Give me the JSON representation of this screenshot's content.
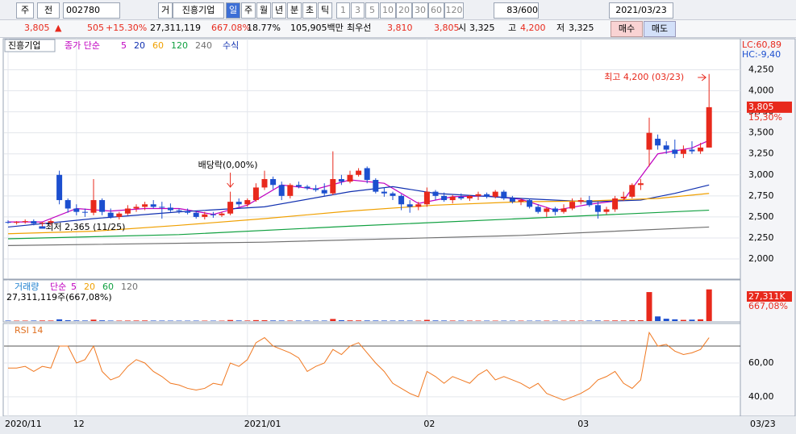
{
  "toolbar": {
    "market": "주",
    "prev": "전",
    "code": "002780",
    "type": "거",
    "name": "진흥기업",
    "periods": [
      "일",
      "주",
      "월",
      "년",
      "분",
      "초",
      "틱"
    ],
    "intervals": [
      "1",
      "3",
      "5",
      "10",
      "20",
      "30",
      "60",
      "120"
    ],
    "count": "83/600",
    "date": "2021/03/23"
  },
  "quote": {
    "price": "3,805",
    "arrow": "▲",
    "change": "505",
    "rate": "+15.30%",
    "volume": "27,311,119",
    "volume_rate": "667.08%",
    "turnover": "18.77%",
    "amount": "105,905백만",
    "best_label": "최우선",
    "ask": "3,810",
    "bid": "3,805",
    "open_label": "시",
    "open": "3,325",
    "high_label": "고",
    "high": "4,200",
    "low_label": "저",
    "low": "3,325",
    "buy": "매수",
    "sell": "매도"
  },
  "chart_data": [
    {
      "type": "candlestick",
      "legend": {
        "name": "진흥기업",
        "ma_label": "종가 단순",
        "formula": "수식"
      },
      "categories": [
        "2020/11",
        null,
        null,
        null,
        null,
        null,
        null,
        null,
        "12",
        null,
        null,
        null,
        null,
        null,
        null,
        null,
        null,
        null,
        null,
        null,
        null,
        null,
        null,
        null,
        null,
        null,
        null,
        null,
        "2021/01",
        null,
        null,
        null,
        null,
        null,
        null,
        null,
        null,
        null,
        null,
        null,
        null,
        null,
        null,
        null,
        null,
        null,
        null,
        null,
        null,
        "02",
        null,
        null,
        null,
        null,
        null,
        null,
        null,
        null,
        null,
        null,
        null,
        null,
        null,
        null,
        null,
        null,
        null,
        "03",
        null,
        null,
        null,
        null,
        null,
        null,
        null,
        null,
        null,
        null,
        null,
        null,
        null,
        null,
        null
      ],
      "last_date": "03/23",
      "ohlc": [
        [
          2440,
          2460,
          2420,
          2430
        ],
        [
          2430,
          2450,
          2410,
          2440
        ],
        [
          2440,
          2470,
          2420,
          2450
        ],
        [
          2450,
          2470,
          2400,
          2420
        ],
        [
          2420,
          2440,
          2365,
          2430
        ],
        [
          2430,
          2470,
          2400,
          2450
        ],
        [
          3000,
          3050,
          2650,
          2700
        ],
        [
          2700,
          2720,
          2550,
          2600
        ],
        [
          2600,
          2650,
          2520,
          2560
        ],
        [
          2560,
          2600,
          2500,
          2550
        ],
        [
          2550,
          2950,
          2520,
          2700
        ],
        [
          2700,
          2720,
          2520,
          2560
        ],
        [
          2550,
          2600,
          2480,
          2500
        ],
        [
          2500,
          2560,
          2470,
          2540
        ],
        [
          2540,
          2640,
          2520,
          2600
        ],
        [
          2600,
          2650,
          2560,
          2620
        ],
        [
          2620,
          2680,
          2580,
          2650
        ],
        [
          2650,
          2700,
          2600,
          2620
        ],
        [
          2620,
          2680,
          2480,
          2610
        ],
        [
          2610,
          2660,
          2560,
          2580
        ],
        [
          2580,
          2600,
          2540,
          2570
        ],
        [
          2570,
          2600,
          2530,
          2550
        ],
        [
          2550,
          2570,
          2480,
          2500
        ],
        [
          2500,
          2560,
          2470,
          2530
        ],
        [
          2530,
          2560,
          2490,
          2520
        ],
        [
          2520,
          2560,
          2500,
          2540
        ],
        [
          2540,
          2800,
          2520,
          2680
        ],
        [
          2680,
          2720,
          2620,
          2650
        ],
        [
          2650,
          2720,
          2620,
          2700
        ],
        [
          2700,
          2900,
          2680,
          2850
        ],
        [
          2850,
          3050,
          2820,
          2950
        ],
        [
          2950,
          2980,
          2830,
          2880
        ],
        [
          2880,
          2920,
          2700,
          2750
        ],
        [
          2750,
          2900,
          2720,
          2880
        ],
        [
          2880,
          2920,
          2840,
          2860
        ],
        [
          2860,
          2880,
          2820,
          2840
        ],
        [
          2840,
          2880,
          2800,
          2820
        ],
        [
          2820,
          2900,
          2750,
          2780
        ],
        [
          2780,
          3280,
          2760,
          2950
        ],
        [
          2950,
          3000,
          2880,
          2920
        ],
        [
          2920,
          3050,
          2900,
          3000
        ],
        [
          3000,
          3080,
          2980,
          3050
        ],
        [
          3080,
          3100,
          2900,
          2940
        ],
        [
          2940,
          2960,
          2780,
          2800
        ],
        [
          2800,
          2850,
          2740,
          2780
        ],
        [
          2780,
          2800,
          2700,
          2750
        ],
        [
          2750,
          2770,
          2580,
          2650
        ],
        [
          2650,
          2700,
          2550,
          2620
        ],
        [
          2620,
          2680,
          2580,
          2650
        ],
        [
          2650,
          2850,
          2620,
          2800
        ],
        [
          2800,
          2820,
          2700,
          2750
        ],
        [
          2750,
          2790,
          2680,
          2700
        ],
        [
          2700,
          2760,
          2660,
          2740
        ],
        [
          2740,
          2780,
          2700,
          2720
        ],
        [
          2720,
          2760,
          2690,
          2750
        ],
        [
          2750,
          2800,
          2700,
          2770
        ],
        [
          2770,
          2790,
          2720,
          2740
        ],
        [
          2740,
          2820,
          2720,
          2800
        ],
        [
          2800,
          2820,
          2700,
          2720
        ],
        [
          2720,
          2750,
          2660,
          2680
        ],
        [
          2680,
          2720,
          2640,
          2700
        ],
        [
          2700,
          2720,
          2600,
          2620
        ],
        [
          2620,
          2650,
          2540,
          2560
        ],
        [
          2560,
          2620,
          2500,
          2600
        ],
        [
          2600,
          2620,
          2520,
          2560
        ],
        [
          2560,
          2650,
          2540,
          2600
        ],
        [
          2600,
          2720,
          2580,
          2680
        ],
        [
          2680,
          2730,
          2650,
          2700
        ],
        [
          2700,
          2750,
          2620,
          2640
        ],
        [
          2640,
          2680,
          2480,
          2560
        ],
        [
          2560,
          2620,
          2530,
          2590
        ],
        [
          2590,
          2750,
          2560,
          2720
        ],
        [
          2720,
          2800,
          2690,
          2740
        ],
        [
          2740,
          2900,
          2720,
          2880
        ],
        [
          2880,
          2950,
          2820,
          2900
        ],
        [
          3300,
          3680,
          3100,
          3500
        ],
        [
          3430,
          3480,
          3300,
          3350
        ],
        [
          3350,
          3400,
          3250,
          3300
        ],
        [
          3300,
          3420,
          3200,
          3250
        ],
        [
          3250,
          3350,
          3200,
          3300
        ],
        [
          3300,
          3400,
          3250,
          3280
        ],
        [
          3280,
          3380,
          3250,
          3325
        ],
        [
          3325,
          4200,
          3325,
          3805
        ]
      ],
      "colors": {
        "up": "#e8291c",
        "down": "#1c4fcf"
      },
      "series": [
        {
          "name": "5",
          "color": "#c000c0",
          "x": [
            0,
            4,
            8,
            12,
            16,
            20,
            24,
            28,
            32,
            36,
            40,
            44,
            48,
            52,
            56,
            60,
            64,
            68,
            72,
            76,
            80,
            82
          ],
          "values": [
            2440,
            2440,
            2600,
            2570,
            2600,
            2600,
            2530,
            2640,
            2880,
            2830,
            2940,
            2900,
            2660,
            2740,
            2750,
            2710,
            2580,
            2650,
            2700,
            3250,
            3320,
            3410
          ]
        },
        {
          "name": "20",
          "color": "#1030b0",
          "x": [
            0,
            10,
            20,
            30,
            40,
            45,
            50,
            60,
            68,
            74,
            78,
            82
          ],
          "values": [
            2380,
            2480,
            2560,
            2620,
            2800,
            2860,
            2780,
            2720,
            2680,
            2700,
            2780,
            2880
          ]
        },
        {
          "name": "60",
          "color": "#f0a000",
          "x": [
            0,
            10,
            20,
            30,
            40,
            50,
            60,
            68,
            76,
            82
          ],
          "values": [
            2300,
            2330,
            2400,
            2480,
            2570,
            2640,
            2680,
            2690,
            2720,
            2780
          ]
        },
        {
          "name": "120",
          "color": "#10a040",
          "x": [
            0,
            20,
            40,
            60,
            82
          ],
          "values": [
            2240,
            2290,
            2390,
            2480,
            2580
          ]
        },
        {
          "name": "240",
          "color": "#707070",
          "x": [
            0,
            30,
            60,
            82
          ],
          "values": [
            2160,
            2200,
            2280,
            2380
          ]
        }
      ],
      "ylim": [
        1770,
        4600
      ],
      "yticks": [
        {
          "value": 2000,
          "label": "2,000"
        },
        {
          "value": 2250,
          "label": "2,250"
        },
        {
          "value": 2500,
          "label": "2,500"
        },
        {
          "value": 2750,
          "label": "2,750"
        },
        {
          "value": 3000,
          "label": "3,000"
        },
        {
          "value": 3250,
          "label": "3,250"
        },
        {
          "value": 3500,
          "label": "3,500"
        },
        {
          "value": 3750,
          "label": "3,750"
        },
        {
          "value": 4000,
          "label": "4,000"
        },
        {
          "value": 4250,
          "label": "4,250"
        }
      ],
      "annotations": {
        "high": "최고 4,200 (03/23)",
        "dividend": "배당락(0,00%)",
        "low": "최저 2,365 (11/25)"
      },
      "last_label": "3,805",
      "rate_label": "15,30%",
      "lc": "LC:60,89",
      "hc": "HC:-9,40"
    },
    {
      "type": "bar",
      "legend": {
        "name": "거래량",
        "ma_label": "단순",
        "names": [
          {
            "name": "5",
            "color": "#c000c0"
          },
          {
            "name": "20",
            "color": "#f0a000"
          },
          {
            "name": "60",
            "color": "#10a040"
          },
          {
            "name": "120",
            "color": "#707070"
          }
        ]
      },
      "values": [
        400000,
        350000,
        380000,
        420000,
        500000,
        450000,
        1500000,
        700000,
        500000,
        450000,
        1200000,
        600000,
        400000,
        380000,
        420000,
        450000,
        500000,
        400000,
        380000,
        350000,
        340000,
        330000,
        360000,
        350000,
        340000,
        330000,
        900000,
        500000,
        450000,
        800000,
        700000,
        500000,
        450000,
        420000,
        400000,
        380000,
        360000,
        400000,
        1800000,
        700000,
        600000,
        550000,
        500000,
        450000,
        420000,
        400000,
        450000,
        400000,
        380000,
        1000000,
        500000,
        450000,
        420000,
        400000,
        380000,
        360000,
        350000,
        340000,
        360000,
        350000,
        340000,
        330000,
        350000,
        360000,
        340000,
        330000,
        400000,
        380000,
        360000,
        450000,
        420000,
        500000,
        480000,
        600000,
        700000,
        25000000,
        4000000,
        2000000,
        1500000,
        1000000,
        1200000,
        1500000,
        27311119
      ],
      "ylim": [
        0,
        32000000
      ],
      "summary": "27,311,119주(667,08%)",
      "last_label": "27,311K",
      "rate_label": "667,08%"
    },
    {
      "type": "line",
      "title": "RSI 14",
      "color": "#f07820",
      "values": [
        57,
        57,
        58,
        55,
        58,
        57,
        70,
        70,
        60,
        62,
        70,
        55,
        50,
        52,
        58,
        62,
        60,
        55,
        52,
        48,
        47,
        45,
        44,
        45,
        48,
        47,
        60,
        58,
        62,
        72,
        75,
        70,
        68,
        66,
        63,
        55,
        58,
        60,
        68,
        65,
        70,
        72,
        66,
        60,
        55,
        48,
        45,
        42,
        40,
        55,
        52,
        48,
        52,
        50,
        48,
        53,
        56,
        50,
        52,
        50,
        48,
        45,
        48,
        42,
        40,
        38,
        40,
        42,
        45,
        50,
        52,
        55,
        48,
        45,
        50,
        78,
        70,
        71,
        67,
        65,
        66,
        68,
        75
      ],
      "ylim": [
        29,
        82.4
      ],
      "yticks": [
        {
          "value": 40,
          "label": "40,00"
        },
        {
          "value": 60,
          "label": "60,00"
        }
      ],
      "levels": [
        70
      ]
    }
  ]
}
